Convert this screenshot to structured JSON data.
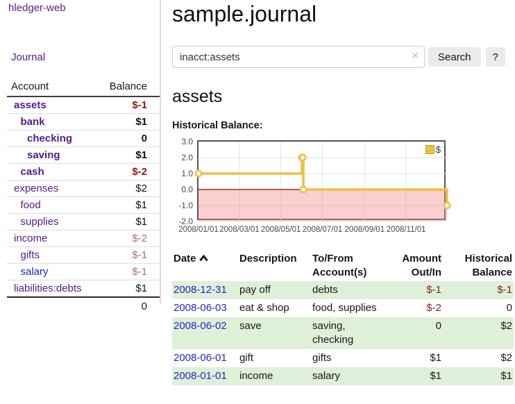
{
  "colors": {
    "link-purple": "#551a8b",
    "link-blue": "#2323cc",
    "neg-strong": "#8b1717",
    "neg-soft": "#b36b6b",
    "row-green": "#dff0d8",
    "chart-line": "#edc240",
    "chart-zero-line": "#8b0000",
    "chart-negative-fill": "rgba(245,140,140,0.42)",
    "chart-grid": "#e2e2e2",
    "divider": "#d8d8d8",
    "button-bg": "#ebebeb"
  },
  "sidebar": {
    "brand": "hledger-web",
    "journal_label": "Journal",
    "table": {
      "account_header": "Account",
      "balance_header": "Balance",
      "rows": [
        {
          "name": "assets",
          "indent": 0,
          "bold": true,
          "balance": "$-1",
          "balance_class": "neg-strong",
          "link_color": "purple"
        },
        {
          "name": "bank",
          "indent": 1,
          "bold": true,
          "balance": "$1",
          "balance_class": "pos",
          "link_color": "purple"
        },
        {
          "name": "checking",
          "indent": 2,
          "bold": true,
          "balance": "0",
          "balance_class": "pos",
          "link_color": "purple"
        },
        {
          "name": "saving",
          "indent": 2,
          "bold": true,
          "balance": "$1",
          "balance_class": "pos",
          "link_color": "purple"
        },
        {
          "name": "cash",
          "indent": 1,
          "bold": true,
          "balance": "$-2",
          "balance_class": "neg-strong",
          "link_color": "purple"
        },
        {
          "name": "expenses",
          "indent": 0,
          "bold": false,
          "balance": "$2",
          "balance_class": "pos",
          "link_color": "purple"
        },
        {
          "name": "food",
          "indent": 1,
          "bold": false,
          "balance": "$1",
          "balance_class": "pos",
          "link_color": "purple"
        },
        {
          "name": "supplies",
          "indent": 1,
          "bold": false,
          "balance": "$1",
          "balance_class": "pos",
          "link_color": "purple"
        },
        {
          "name": "income",
          "indent": 0,
          "bold": false,
          "balance": "$-2",
          "balance_class": "neg-soft",
          "link_color": "purple"
        },
        {
          "name": "gifts",
          "indent": 1,
          "bold": false,
          "balance": "$-1",
          "balance_class": "neg-soft",
          "link_color": "purple"
        },
        {
          "name": "salary",
          "indent": 1,
          "bold": false,
          "balance": "$-1",
          "balance_class": "neg-soft",
          "link_color": "blue"
        },
        {
          "name": "liabilities:debts",
          "indent": 0,
          "bold": false,
          "balance": "$1",
          "balance_class": "pos",
          "link_color": "purple"
        }
      ],
      "total": "0"
    }
  },
  "header": {
    "title": "sample.journal"
  },
  "search": {
    "value": "inacct:assets",
    "clear_icon": "×",
    "button_label": "Search",
    "help_label": "?"
  },
  "account_page": {
    "heading": "assets"
  },
  "chart_data": {
    "type": "line",
    "style": "step-after",
    "title": "Historical Balance:",
    "x_range": [
      "2008-01-01",
      "2008-12-31"
    ],
    "y_range": [
      -2,
      3
    ],
    "grid": true,
    "legend_position": "top-right",
    "legend": {
      "label": "$"
    },
    "series": [
      {
        "name": "$",
        "points": [
          [
            "2008-01-01",
            1
          ],
          [
            "2008-06-01",
            2
          ],
          [
            "2008-06-02",
            2
          ],
          [
            "2008-06-03",
            0
          ],
          [
            "2008-12-31",
            -1
          ]
        ]
      }
    ],
    "y_ticks": [
      {
        "value": 3,
        "label": "3.0"
      },
      {
        "value": 2,
        "label": "2.0"
      },
      {
        "value": 1,
        "label": "1.0"
      },
      {
        "value": 0,
        "label": "0.0"
      },
      {
        "value": -1,
        "label": "-1.0"
      },
      {
        "value": -2,
        "label": "-2.0"
      }
    ],
    "x_ticks": [
      {
        "date": "2008-01-01",
        "label": "2008/01/01"
      },
      {
        "date": "2008-03-01",
        "label": "2008/03/01"
      },
      {
        "date": "2008-05-01",
        "label": "2008/05/01"
      },
      {
        "date": "2008-07-01",
        "label": "2008/07/01"
      },
      {
        "date": "2008-09-01",
        "label": "2008/09/01"
      },
      {
        "date": "2008-11-01",
        "label": "2008/11/01"
      }
    ]
  },
  "register": {
    "columns": [
      {
        "line1": "Date",
        "line2": "",
        "align": "l",
        "sortable": true
      },
      {
        "line1": "Description",
        "line2": "",
        "align": "l"
      },
      {
        "line1": "To/From",
        "line2": "Account(s)",
        "align": "l"
      },
      {
        "line1": "Amount",
        "line2": "Out/In",
        "align": "r"
      },
      {
        "line1": "Historical",
        "line2": "Balance",
        "align": "r"
      }
    ],
    "rows": [
      {
        "date": "2008-12-31",
        "description": "pay off",
        "accounts": "debts",
        "amount": "$-1",
        "amount_neg": true,
        "balance": "$-1",
        "balance_neg": true,
        "shade": true
      },
      {
        "date": "2008-06-03",
        "description": "eat & shop",
        "accounts": "food, supplies",
        "amount": "$-2",
        "amount_neg": true,
        "balance": "0",
        "balance_neg": false,
        "shade": false
      },
      {
        "date": "2008-06-02",
        "description": "save",
        "accounts": "saving, checking",
        "amount": "0",
        "amount_neg": false,
        "balance": "$2",
        "balance_neg": false,
        "shade": true
      },
      {
        "date": "2008-06-01",
        "description": "gift",
        "accounts": "gifts",
        "amount": "$1",
        "amount_neg": false,
        "balance": "$2",
        "balance_neg": false,
        "shade": false
      },
      {
        "date": "2008-01-01",
        "description": "income",
        "accounts": "salary",
        "amount": "$1",
        "amount_neg": false,
        "balance": "$1",
        "balance_neg": false,
        "shade": true
      }
    ]
  }
}
